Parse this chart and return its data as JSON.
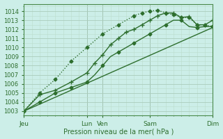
{
  "xlabel": "Pression niveau de la mer( hPa )",
  "background_color": "#cceee8",
  "grid_color_major": "#aaddcc",
  "grid_color_minor": "#bbeedf",
  "line_color": "#2d6e2d",
  "line_color_light": "#4a9a4a",
  "ylim": [
    1002.5,
    1014.8
  ],
  "xlim": [
    0,
    24
  ],
  "xtick_labels": [
    "Jeu",
    "Lun",
    "Ven",
    "Sam",
    "Dim"
  ],
  "xtick_positions": [
    0,
    8,
    10,
    16,
    24
  ],
  "ytick_values": [
    1003,
    1004,
    1005,
    1006,
    1007,
    1008,
    1009,
    1010,
    1011,
    1012,
    1013,
    1014
  ],
  "series": [
    {
      "x": [
        0,
        1,
        2,
        3,
        4,
        5,
        6,
        7,
        8,
        9,
        10,
        11,
        12,
        13,
        14,
        15,
        16,
        17,
        18,
        19,
        20,
        21,
        22,
        23,
        24
      ],
      "y": [
        1003.0,
        1003.5,
        1004.0,
        1004.5,
        1005.0,
        1005.3,
        1005.6,
        1005.9,
        1006.2,
        1007.0,
        1008.0,
        1009.0,
        1009.5,
        1010.0,
        1010.5,
        1011.0,
        1011.5,
        1012.0,
        1012.5,
        1013.0,
        1013.0,
        1012.3,
        1012.2,
        1012.3,
        1012.3
      ],
      "linestyle": "solid",
      "marker": "D",
      "markersize": 2.5,
      "linewidth": 1.0,
      "markevery": 2,
      "color": "#2d6e2d"
    },
    {
      "x": [
        0,
        2,
        4,
        6,
        8,
        9,
        10,
        11,
        12,
        13,
        14,
        15,
        16,
        17,
        18,
        19,
        20,
        21,
        22,
        23,
        24
      ],
      "y": [
        1003.0,
        1004.8,
        1005.3,
        1006.2,
        1007.2,
        1008.3,
        1009.2,
        1010.3,
        1011.0,
        1011.7,
        1012.0,
        1012.5,
        1013.0,
        1013.5,
        1013.8,
        1013.8,
        1013.3,
        1013.4,
        1012.5,
        1012.5,
        1013.0
      ],
      "linestyle": "solid",
      "marker": "+",
      "markersize": 4,
      "linewidth": 1.0,
      "markevery": 1,
      "color": "#2d6e2d"
    },
    {
      "x": [
        0,
        2,
        4,
        6,
        8,
        10,
        12,
        14,
        15,
        16,
        17,
        18,
        19,
        20,
        21,
        22,
        23,
        24
      ],
      "y": [
        1003.0,
        1005.0,
        1006.5,
        1008.5,
        1010.0,
        1011.5,
        1012.5,
        1013.5,
        1013.8,
        1014.0,
        1014.1,
        1013.8,
        1013.6,
        1013.3,
        1013.3,
        1012.5,
        1012.5,
        1012.3
      ],
      "linestyle": "dotted",
      "marker": "D",
      "markersize": 2.5,
      "linewidth": 1.0,
      "markevery": 1,
      "color": "#2d6e2d"
    },
    {
      "x": [
        0,
        24
      ],
      "y": [
        1003.0,
        1012.2
      ],
      "linestyle": "solid",
      "marker": null,
      "markersize": 0,
      "linewidth": 1.0,
      "markevery": 1,
      "color": "#2d6e2d"
    }
  ]
}
